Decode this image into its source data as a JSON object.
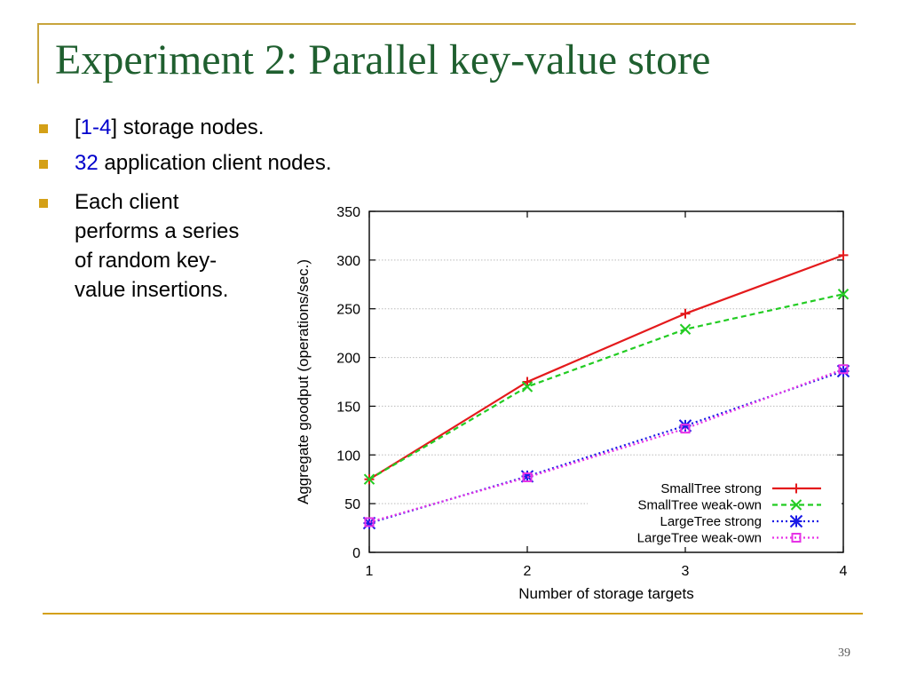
{
  "slide": {
    "title": "Experiment 2: Parallel key-value store",
    "bullets": [
      {
        "pre": "[",
        "highlight": "1-4",
        "post": "] storage nodes."
      },
      {
        "highlight": "32",
        "post": " application client nodes."
      },
      {
        "lines": [
          "Each client",
          "performs a series",
          "of random key-",
          "value insertions."
        ]
      }
    ],
    "page_number": "39",
    "colors": {
      "title": "#1f5f2f",
      "accent": "#d4a017",
      "highlight": "#0000cc"
    }
  },
  "chart_data": {
    "type": "line",
    "title": "",
    "xlabel": "Number of storage targets",
    "ylabel": "Aggregate goodput (operations/sec.)",
    "x": [
      1,
      2,
      3,
      4
    ],
    "xticks": [
      "1",
      "2",
      "3",
      "4"
    ],
    "yticks": [
      "0",
      "50",
      "100",
      "150",
      "200",
      "250",
      "300",
      "350"
    ],
    "xlim": [
      1,
      4
    ],
    "ylim": [
      0,
      350
    ],
    "grid": true,
    "legend_position": "bottom-right",
    "series": [
      {
        "name": "SmallTree strong",
        "values": [
          75,
          175,
          245,
          305
        ],
        "color": "#e41a1c",
        "dash": "solid",
        "marker": "plus"
      },
      {
        "name": "SmallTree weak-own",
        "values": [
          75,
          170,
          229,
          265
        ],
        "color": "#22cc22",
        "dash": "dashed",
        "marker": "cross"
      },
      {
        "name": "LargeTree strong",
        "values": [
          30,
          78,
          130,
          186
        ],
        "color": "#1a1ae6",
        "dash": "dotted",
        "marker": "star"
      },
      {
        "name": "LargeTree weak-own",
        "values": [
          31,
          77,
          127,
          188
        ],
        "color": "#e632e6",
        "dash": "dotted",
        "marker": "square"
      }
    ]
  }
}
